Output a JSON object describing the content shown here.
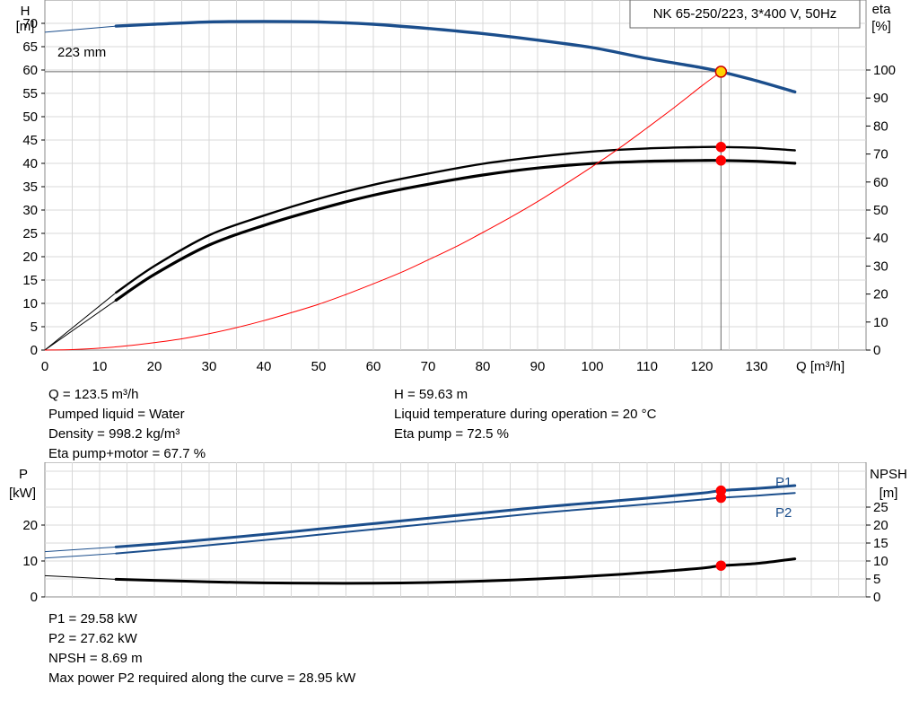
{
  "chart_data": [
    {
      "type": "line",
      "title": "NK 65-250/223, 3*400 V, 50Hz",
      "xlabel": "Q [m³/h]",
      "ylabel_left": [
        "H",
        "[m]"
      ],
      "ylabel_right": [
        "eta",
        "[%]"
      ],
      "xlim": [
        0,
        150
      ],
      "ylim_left": [
        0,
        75
      ],
      "ylim_right": [
        0,
        125
      ],
      "x_ticks": [
        0,
        10,
        20,
        30,
        40,
        50,
        60,
        70,
        80,
        90,
        100,
        110,
        120,
        130
      ],
      "y_ticks_left": [
        0,
        5,
        10,
        15,
        20,
        25,
        30,
        35,
        40,
        45,
        50,
        55,
        60,
        65,
        70
      ],
      "y_ticks_right": [
        0,
        10,
        20,
        30,
        40,
        50,
        60,
        70,
        80,
        90,
        100
      ],
      "grid": true,
      "curve_label": "223 mm",
      "duty_point": {
        "q": 123.5,
        "h": 59.63,
        "eta_pump": 72.5,
        "eta_total": 67.7
      },
      "series": [
        {
          "name": "223 mm",
          "axis": "left",
          "color": "#1b4e8c",
          "width": 3.4,
          "x": [
            0,
            13,
            20,
            30,
            40,
            50,
            60,
            70,
            80,
            90,
            100,
            110,
            120,
            123.5,
            130,
            137
          ],
          "y": [
            68.1,
            69.4,
            69.8,
            70.3,
            70.4,
            70.3,
            69.8,
            68.9,
            67.8,
            66.4,
            64.8,
            62.5,
            60.5,
            59.63,
            57.7,
            55.3
          ],
          "thin_until": 13
        },
        {
          "axis": "right",
          "color": "#000000",
          "width": 2.4,
          "x": [
            0,
            13,
            20,
            30,
            40,
            50,
            60,
            70,
            80,
            90,
            100,
            110,
            120,
            123.5,
            130,
            137
          ],
          "y": [
            0,
            20.5,
            30,
            41,
            48,
            54,
            59,
            63,
            66.5,
            69,
            70.9,
            72,
            72.5,
            72.5,
            72.2,
            71.3
          ],
          "thin_until": 13
        },
        {
          "axis": "right",
          "color": "#000000",
          "width": 3.2,
          "x": [
            0,
            13,
            20,
            30,
            40,
            50,
            60,
            70,
            80,
            90,
            100,
            110,
            120,
            123.5,
            130,
            137
          ],
          "y": [
            0,
            17.8,
            27,
            37.5,
            44.5,
            50.3,
            55.3,
            59.2,
            62.5,
            65,
            66.6,
            67.4,
            67.7,
            67.7,
            67.4,
            66.7
          ],
          "thin_until": 13
        },
        {
          "axis": "left",
          "color": "#ff0000",
          "width": 1,
          "x": [
            0,
            5,
            10,
            15,
            20,
            25,
            30,
            35,
            40,
            45,
            50,
            55,
            60,
            65,
            70,
            75,
            80,
            85,
            90,
            95,
            100,
            105,
            110,
            115,
            120,
            123.5
          ],
          "y": [
            0,
            0.1,
            0.4,
            0.9,
            1.6,
            2.4,
            3.5,
            4.8,
            6.3,
            8.0,
            9.8,
            11.9,
            14.2,
            16.6,
            19.3,
            22.1,
            25.2,
            28.4,
            31.8,
            35.5,
            39.3,
            43.3,
            47.6,
            52.0,
            56.6,
            59.63
          ]
        }
      ],
      "markers": [
        {
          "x": 123.5,
          "y": 59.63,
          "axis": "left",
          "color": "#ffd200",
          "stroke": "#cc0000",
          "size": 6
        },
        {
          "x": 123.5,
          "y": 72.5,
          "axis": "right",
          "color": "#ff0000",
          "stroke": "#ff0000",
          "size": 5
        },
        {
          "x": 123.5,
          "y": 67.7,
          "axis": "right",
          "color": "#ff0000",
          "stroke": "#ff0000",
          "size": 5
        }
      ]
    },
    {
      "type": "line",
      "ylabel_left": [
        "P",
        "[kW]"
      ],
      "ylabel_right": [
        "NPSH",
        "[m]"
      ],
      "xlim": [
        0,
        150
      ],
      "ylim_left": [
        0,
        37.5
      ],
      "ylim_right": [
        0,
        37.5
      ],
      "y_ticks_left": [
        0,
        10,
        20
      ],
      "y_ticks_right": [
        0,
        5,
        10,
        15,
        20,
        25
      ],
      "grid": true,
      "duty_point": {
        "q": 123.5,
        "p1": 29.58,
        "p2": 27.62,
        "npsh": 8.69
      },
      "series": [
        {
          "name": "P1",
          "axis": "left",
          "color": "#1b4e8c",
          "width": 3,
          "x": [
            0,
            13,
            20,
            30,
            40,
            50,
            60,
            70,
            80,
            90,
            100,
            110,
            120,
            123.5,
            130,
            137
          ],
          "y": [
            12.6,
            13.9,
            14.7,
            16,
            17.4,
            18.9,
            20.4,
            21.9,
            23.4,
            24.9,
            26.2,
            27.5,
            28.9,
            29.58,
            30.2,
            31.0
          ],
          "thin_until": 13
        },
        {
          "name": "P2",
          "axis": "left",
          "color": "#1b4e8c",
          "width": 2,
          "x": [
            0,
            13,
            20,
            30,
            40,
            50,
            60,
            70,
            80,
            90,
            100,
            110,
            120,
            123.5,
            130,
            137
          ],
          "y": [
            10.8,
            12.1,
            13.0,
            14.4,
            15.8,
            17.3,
            18.8,
            20.3,
            21.8,
            23.3,
            24.6,
            25.8,
            27.1,
            27.62,
            28.2,
            28.95
          ],
          "thin_until": 13
        },
        {
          "axis": "right",
          "color": "#000000",
          "width": 3,
          "x": [
            0,
            13,
            20,
            30,
            40,
            50,
            60,
            70,
            80,
            90,
            100,
            110,
            120,
            123.5,
            130,
            137
          ],
          "y": [
            5.9,
            4.9,
            4.6,
            4.2,
            3.9,
            3.8,
            3.8,
            4.0,
            4.4,
            5.0,
            5.8,
            6.8,
            8.0,
            8.69,
            9.3,
            10.6
          ],
          "thin_until": 13
        }
      ],
      "markers": [
        {
          "x": 123.5,
          "y": 29.58,
          "axis": "left",
          "color": "#ff0000",
          "stroke": "#ff0000",
          "size": 5
        },
        {
          "x": 123.5,
          "y": 27.62,
          "axis": "left",
          "color": "#ff0000",
          "stroke": "#ff0000",
          "size": 5
        },
        {
          "x": 123.5,
          "y": 8.69,
          "axis": "right",
          "color": "#ff0000",
          "stroke": "#ff0000",
          "size": 5
        }
      ]
    }
  ],
  "annotations_top": {
    "left": [
      "Q = 123.5 m³/h",
      "Pumped liquid = Water",
      "Density = 998.2 kg/m³",
      "Eta pump+motor = 67.7 %"
    ],
    "right": [
      "H = 59.63 m",
      "Liquid temperature during operation = 20 °C",
      "Eta pump = 72.5 %"
    ]
  },
  "annotations_bottom": [
    "P1 = 29.58 kW",
    "P2 = 27.62 kW",
    "NPSH = 8.69 m",
    "Max power P2 required along the curve = 28.95 kW"
  ]
}
